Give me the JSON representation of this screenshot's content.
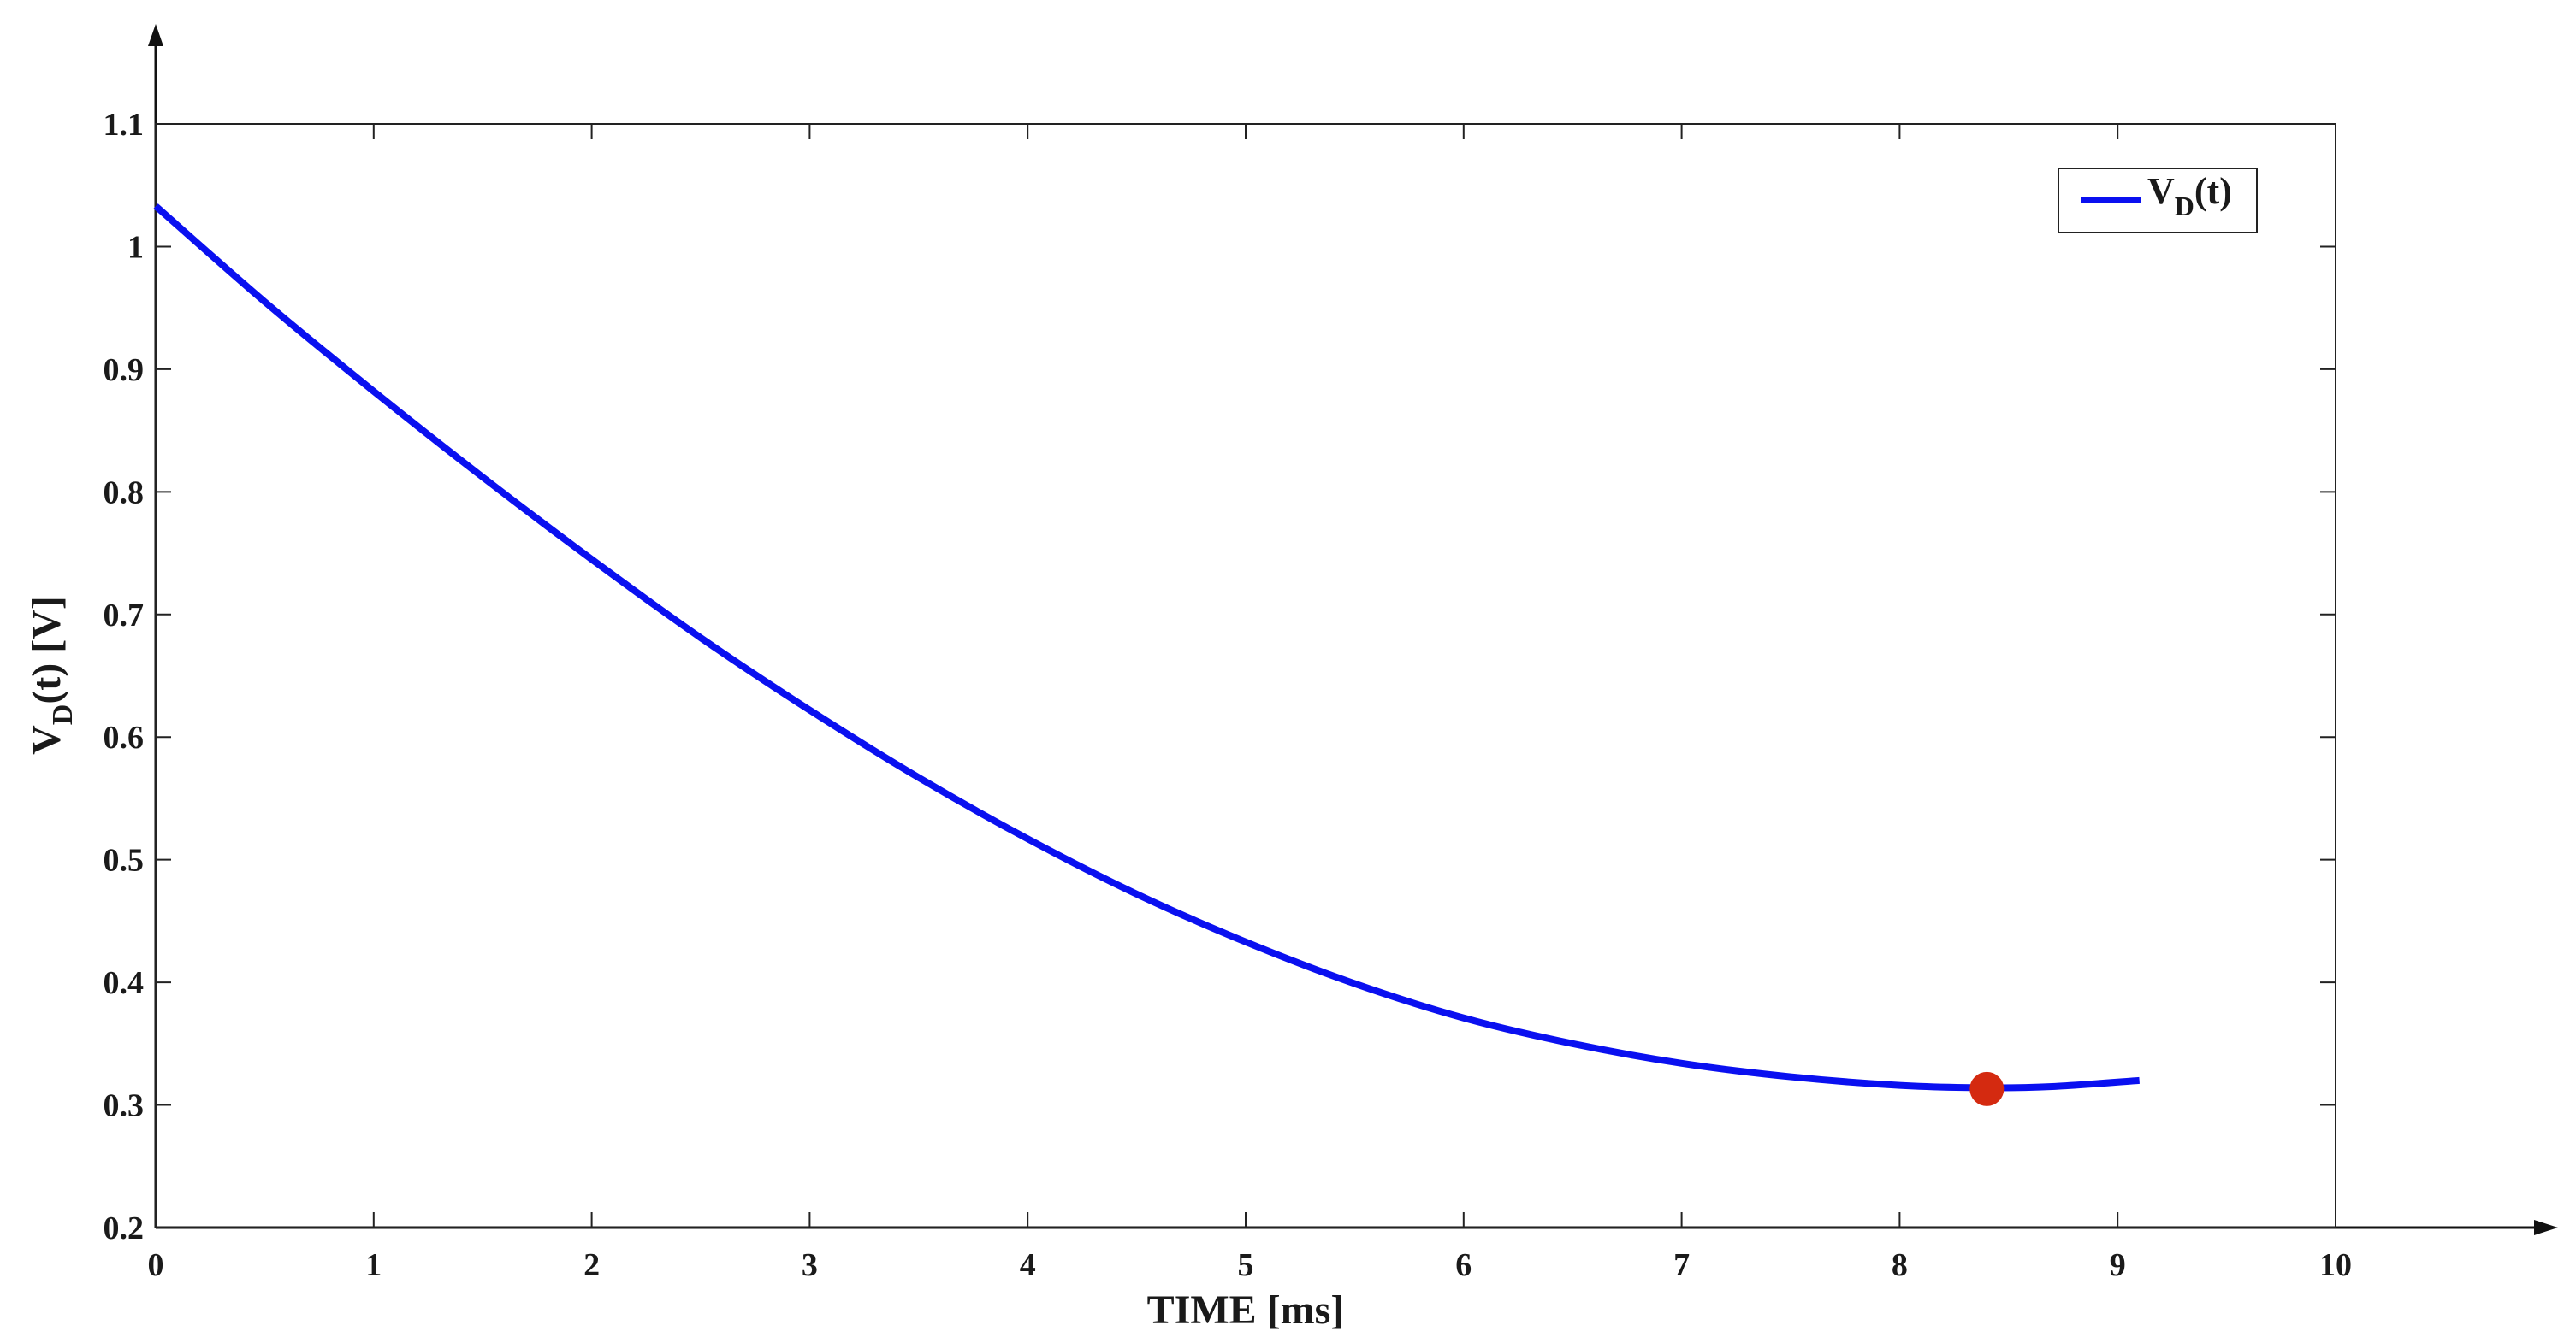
{
  "chart_data": {
    "type": "line",
    "title": "",
    "xlabel": "TIME [ms]",
    "ylabel_main": "V",
    "ylabel_sub": "D",
    "ylabel_rest": "(t) [V]",
    "xlim": [
      0,
      10
    ],
    "ylim": [
      0.2,
      1.1
    ],
    "xticks": [
      0,
      1,
      2,
      3,
      4,
      5,
      6,
      7,
      8,
      9,
      10
    ],
    "yticks": [
      0.2,
      0.3,
      0.4,
      0.5,
      0.6,
      0.7,
      0.8,
      0.9,
      1,
      1.1
    ],
    "xtick_labels": [
      "0",
      "1",
      "2",
      "3",
      "4",
      "5",
      "6",
      "7",
      "8",
      "9",
      "10"
    ],
    "ytick_labels": [
      "0.2",
      "0.3",
      "0.4",
      "0.5",
      "0.6",
      "0.7",
      "0.8",
      "0.9",
      "1",
      "1.1"
    ],
    "grid": false,
    "legend_position": "top-right",
    "series": [
      {
        "name_main": "V",
        "name_sub": "D",
        "name_rest": "(t)",
        "color": "#0a10f0",
        "x": [
          0,
          0.5,
          1,
          1.5,
          2,
          2.5,
          3,
          3.5,
          4,
          4.5,
          5,
          5.5,
          6,
          6.5,
          7,
          7.5,
          8,
          8.4,
          8.7,
          9.1
        ],
        "y": [
          1.033,
          0.955,
          0.882,
          0.812,
          0.745,
          0.681,
          0.622,
          0.567,
          0.517,
          0.472,
          0.433,
          0.399,
          0.371,
          0.35,
          0.334,
          0.323,
          0.316,
          0.314,
          0.315,
          0.32
        ]
      }
    ],
    "marker": {
      "x": 8.4,
      "y": 0.313,
      "color": "#d42a10"
    }
  }
}
